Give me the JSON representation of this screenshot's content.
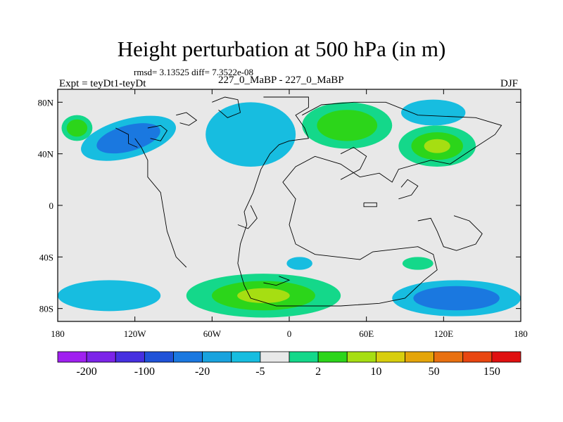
{
  "chart_data": {
    "type": "contour-map",
    "title": "Height perturbation at 500 hPa (in m)",
    "stats_text": "rmsd= 3.13525  diff= 7.3522e-08",
    "left_label": "Expt = teyDt1-teyDt",
    "center_label": "227_0_MaBP - 227_0_MaBP",
    "right_label": "DJF",
    "lon_range": [
      -180,
      180
    ],
    "lat_range": [
      -90,
      90
    ],
    "x_ticks": [
      {
        "lon": -180,
        "label": "180"
      },
      {
        "lon": -120,
        "label": "120W"
      },
      {
        "lon": -60,
        "label": "60W"
      },
      {
        "lon": 0,
        "label": "0"
      },
      {
        "lon": 60,
        "label": "60E"
      },
      {
        "lon": 120,
        "label": "120E"
      },
      {
        "lon": 180,
        "label": "180"
      }
    ],
    "y_ticks": [
      {
        "lat": 80,
        "label": "80N"
      },
      {
        "lat": 40,
        "label": "40N"
      },
      {
        "lat": 0,
        "label": "0"
      },
      {
        "lat": -40,
        "label": "40S"
      },
      {
        "lat": -80,
        "label": "80S"
      }
    ],
    "colorbar": {
      "colors": [
        "#a020f0",
        "#7c24e8",
        "#4630e0",
        "#1f52d8",
        "#1a78e0",
        "#19a3de",
        "#17bde0",
        "#e8e8e8",
        "#14d88a",
        "#2cd51a",
        "#a6de12",
        "#d8ce0d",
        "#e5a50a",
        "#e87010",
        "#e84610",
        "#e01010"
      ],
      "labels": [
        {
          "boundary": 1,
          "text": "-200"
        },
        {
          "boundary": 3,
          "text": "-100"
        },
        {
          "boundary": 5,
          "text": "-20"
        },
        {
          "boundary": 7,
          "text": "-5"
        },
        {
          "boundary": 9,
          "text": "2"
        },
        {
          "boundary": 11,
          "text": "10"
        },
        {
          "boundary": 13,
          "text": "50"
        },
        {
          "boundary": 15,
          "text": "150"
        }
      ]
    },
    "background_color": "#e8e8e8",
    "anomaly_regions": [
      {
        "name": "north-pacific-negative",
        "lon": -125,
        "lat": 52,
        "rx": 38,
        "ry": 15,
        "levels": [
          {
            "value": -5,
            "color": "#17bde0"
          },
          {
            "value": -10,
            "color": "#1a78e0"
          }
        ],
        "rot": -15
      },
      {
        "name": "west-pacific-positive",
        "lon": -165,
        "lat": 60,
        "rx": 12,
        "ry": 10,
        "levels": [
          {
            "value": 5,
            "color": "#14d88a"
          },
          {
            "value": 10,
            "color": "#2cd51a"
          }
        ],
        "rot": 0
      },
      {
        "name": "arctic-atlantic-negative",
        "lon": -30,
        "lat": 55,
        "rx": 35,
        "ry": 25,
        "levels": [
          {
            "value": -5,
            "color": "#17bde0"
          }
        ],
        "rot": 0
      },
      {
        "name": "asia-positive",
        "lon": 45,
        "lat": 62,
        "rx": 35,
        "ry": 18,
        "levels": [
          {
            "value": 5,
            "color": "#14d88a"
          },
          {
            "value": 10,
            "color": "#2cd51a"
          }
        ],
        "rot": 0
      },
      {
        "name": "east-asia-positive",
        "lon": 115,
        "lat": 46,
        "rx": 30,
        "ry": 16,
        "levels": [
          {
            "value": 5,
            "color": "#14d88a"
          },
          {
            "value": 10,
            "color": "#2cd51a"
          },
          {
            "value": 20,
            "color": "#a6de12"
          }
        ],
        "rot": 0
      },
      {
        "name": "east-asia-negative",
        "lon": 112,
        "lat": 72,
        "rx": 25,
        "ry": 10,
        "levels": [
          {
            "value": -5,
            "color": "#17bde0"
          }
        ],
        "rot": 0
      },
      {
        "name": "southern-ocean-positive",
        "lon": -20,
        "lat": -70,
        "rx": 60,
        "ry": 17,
        "levels": [
          {
            "value": 5,
            "color": "#14d88a"
          },
          {
            "value": 10,
            "color": "#2cd51a"
          },
          {
            "value": 20,
            "color": "#a6de12"
          }
        ],
        "rot": 0
      },
      {
        "name": "southern-pacific-negative",
        "lon": -140,
        "lat": -70,
        "rx": 40,
        "ry": 12,
        "levels": [
          {
            "value": -5,
            "color": "#17bde0"
          }
        ],
        "rot": 0
      },
      {
        "name": "southern-indian-negative",
        "lon": 130,
        "lat": -72,
        "rx": 50,
        "ry": 14,
        "levels": [
          {
            "value": -5,
            "color": "#17bde0"
          },
          {
            "value": -10,
            "color": "#1a78e0"
          }
        ],
        "rot": 0
      },
      {
        "name": "tropical-south-atlantic-negative",
        "lon": 8,
        "lat": -45,
        "rx": 10,
        "ry": 5,
        "levels": [
          {
            "value": -5,
            "color": "#17bde0"
          }
        ],
        "rot": 0
      },
      {
        "name": "indian-ocean-positive",
        "lon": 100,
        "lat": -45,
        "rx": 12,
        "ry": 5,
        "levels": [
          {
            "value": 5,
            "color": "#14d88a"
          }
        ],
        "rot": 0
      }
    ]
  }
}
